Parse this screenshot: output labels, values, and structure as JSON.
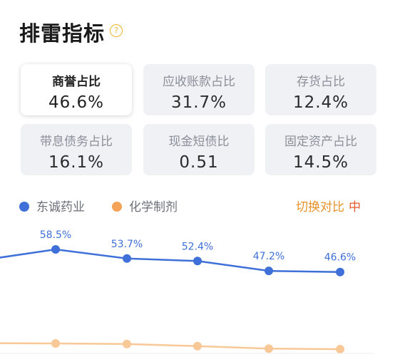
{
  "header": {
    "title": "排雷指标",
    "help_icon": "question-circle-icon"
  },
  "metrics": [
    {
      "label": "商誉占比",
      "value": "46.6%",
      "active": true
    },
    {
      "label": "应收账款占比",
      "value": "31.7%",
      "active": false
    },
    {
      "label": "存货占比",
      "value": "12.4%",
      "active": false
    },
    {
      "label": "带息债务占比",
      "value": "16.1%",
      "active": false
    },
    {
      "label": "现金短债比",
      "value": "0.51",
      "active": false
    },
    {
      "label": "固定资产占比",
      "value": "14.5%",
      "active": false
    }
  ],
  "legend": {
    "company": "东诚药业",
    "industry": "化学制剂",
    "company_color": "#3f6fd8",
    "industry_color": "#f5a356"
  },
  "switch": {
    "label": "切换对比",
    "icon": "switch-icon",
    "icon_char": "中"
  },
  "chart_data": {
    "type": "line",
    "series": [
      {
        "name": "东诚药业",
        "values": [
          null,
          58.5,
          53.7,
          52.4,
          47.2,
          46.6
        ],
        "labels": [
          "",
          "58.5%",
          "53.7%",
          "52.4%",
          "47.2%",
          "46.6%"
        ]
      },
      {
        "name": "化学制剂",
        "values": [
          null,
          9.0,
          8.7,
          7.6,
          6.3,
          6.0
        ]
      }
    ],
    "ylim": [
      0,
      70
    ],
    "grid": false
  }
}
